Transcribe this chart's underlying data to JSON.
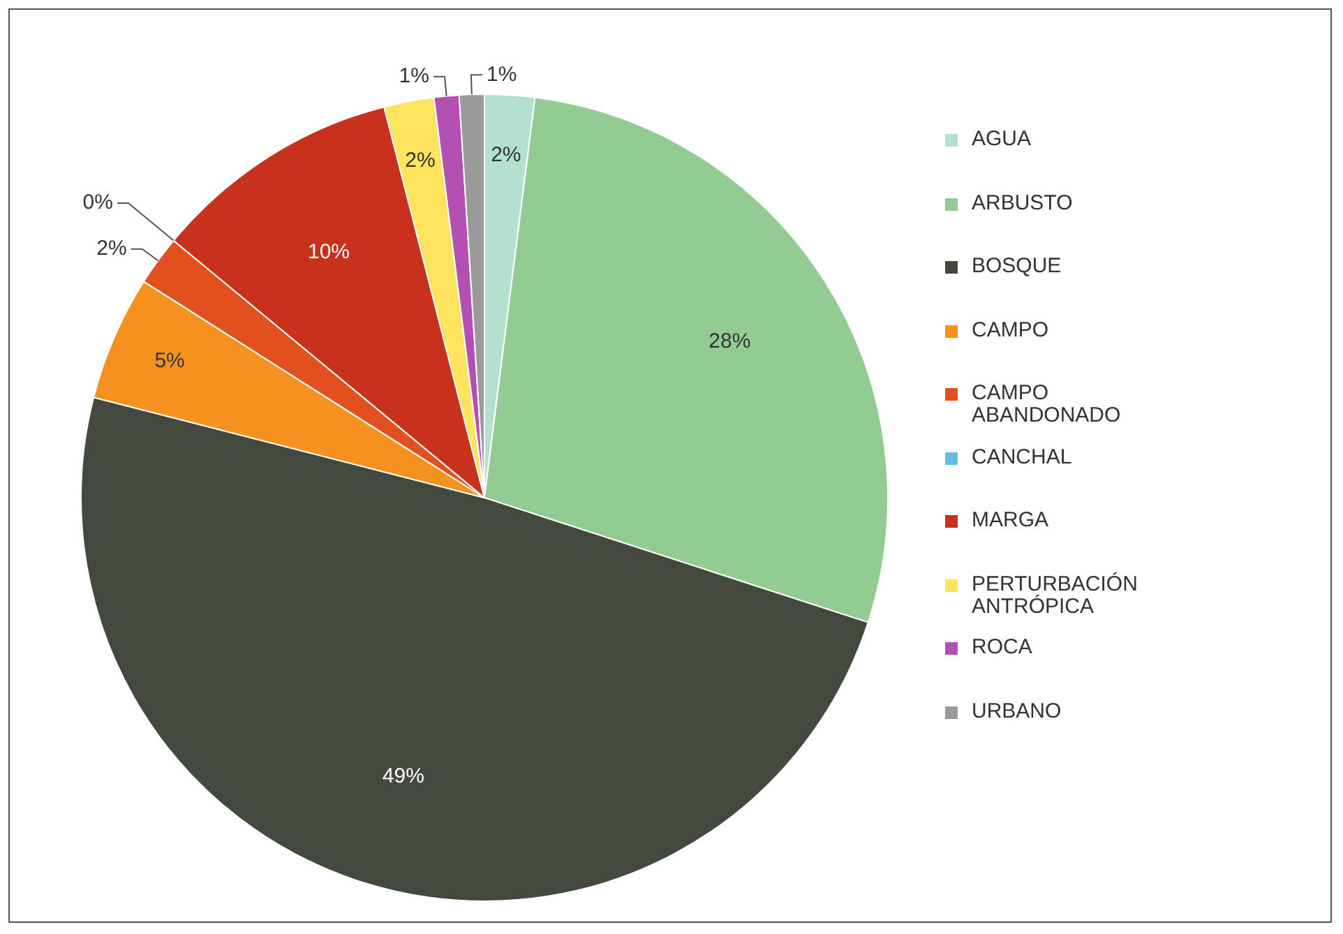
{
  "chart_data": {
    "type": "pie",
    "categories": [
      "AGUA",
      "ARBUSTO",
      "BOSQUE",
      "CAMPO",
      "CAMPO ABANDONADO",
      "CANCHAL",
      "MARGA",
      "PERTURBACIÓN ANTRÓPICA",
      "ROCA",
      "URBANO"
    ],
    "values": [
      2,
      28,
      49,
      5,
      2,
      0,
      10,
      2,
      1,
      1
    ],
    "colors": [
      "#b3e0cf",
      "#93cc93",
      "#434a3d",
      "#f5921f",
      "#e3501f",
      "#62bde3",
      "#c8321c",
      "#fde35e",
      "#b450b4",
      "#9a9a9a"
    ],
    "value_labels": [
      "2%",
      "28%",
      "49%",
      "5%",
      "2%",
      "0%",
      "10%",
      "2%",
      "1%",
      "1%"
    ],
    "legend": "right"
  }
}
